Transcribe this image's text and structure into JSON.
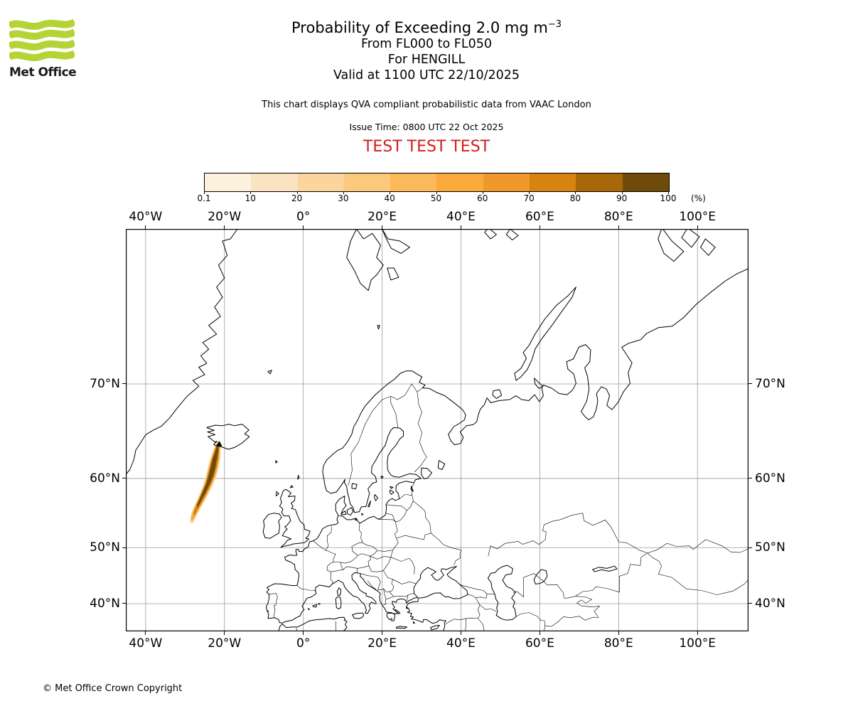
{
  "brand": {
    "name": "Met Office",
    "logo_green": "#b5d334",
    "logo_text_color": "#1b1b1b"
  },
  "header": {
    "title_main": "Probability of Exceeding 2.0 mg m",
    "title_sup": "−3",
    "subtitle1": "From FL000 to FL050",
    "subtitle2": "For HENGILL",
    "subtitle3": "Valid at 1100 UTC 22/10/2025",
    "note": "This chart displays QVA compliant probabilistic data from VAAC London",
    "issue_time": "Issue Time: 0800 UTC 22 Oct 2025",
    "test_banner": "TEST TEST TEST",
    "test_color": "#d21c1c"
  },
  "colorbar": {
    "tick_labels": [
      "0.1",
      "10",
      "20",
      "30",
      "40",
      "50",
      "60",
      "70",
      "80",
      "90",
      "100"
    ],
    "unit": "(%)",
    "colors": [
      "#FDF1DD",
      "#FAE3C1",
      "#FBD59E",
      "#FCC87C",
      "#FBB959",
      "#F9AA3B",
      "#F0982B",
      "#D8830F",
      "#A86708",
      "#6E4A0B"
    ]
  },
  "map": {
    "lon_ticks": [
      {
        "label": "40°W",
        "lon": -40
      },
      {
        "label": "20°W",
        "lon": -20
      },
      {
        "label": "0°",
        "lon": 0
      },
      {
        "label": "20°E",
        "lon": 20
      },
      {
        "label": "40°E",
        "lon": 40
      },
      {
        "label": "60°E",
        "lon": 60
      },
      {
        "label": "80°E",
        "lon": 80
      },
      {
        "label": "100°E",
        "lon": 100
      }
    ],
    "lat_ticks": [
      {
        "label": "70°N",
        "lat": 70
      },
      {
        "label": "60°N",
        "lat": 60
      },
      {
        "label": "50°N",
        "lat": 50
      },
      {
        "label": "40°N",
        "lat": 40
      }
    ],
    "gridline_color": "#9a9a9a",
    "coast_color": "#000000"
  },
  "footer": {
    "copyright": "© Met Office Crown Copyright"
  },
  "chart_data": {
    "type": "geo_probability_contours",
    "title": "Probability of Exceeding 2.0 mg m⁻³",
    "flight_levels": "FL000 to FL050",
    "volcano": {
      "name": "HENGILL",
      "lon": -21.3,
      "lat": 64.08,
      "marker": "triangle"
    },
    "valid_at": "1100 UTC 22/10/2025",
    "issue_time": "0800 UTC 22 Oct 2025",
    "source": "VAAC London",
    "probability_levels_percent": [
      0.1,
      10,
      20,
      30,
      40,
      50,
      60,
      70,
      80,
      90,
      100
    ],
    "projection": "Mercator",
    "map_extent": {
      "lon_min": -45.0,
      "lon_max": 113.3,
      "lat_min": 34.4,
      "lat_max": 79.9
    },
    "lon_gridlines": [
      -40,
      -20,
      0,
      20,
      40,
      60,
      80,
      100
    ],
    "lat_gridlines": [
      40,
      50,
      60,
      70
    ],
    "plume_contours": [
      {
        "level_percent": 0.1,
        "color": "#FAE0B8",
        "polygon_lonlat": [
          [
            -21.1,
            64.35
          ],
          [
            -20.9,
            63.4
          ],
          [
            -21.0,
            62.4
          ],
          [
            -21.4,
            61.4
          ],
          [
            -22.0,
            60.3
          ],
          [
            -22.9,
            59.2
          ],
          [
            -24.0,
            58.0
          ],
          [
            -25.2,
            56.8
          ],
          [
            -26.4,
            55.6
          ],
          [
            -27.4,
            54.5
          ],
          [
            -28.1,
            53.7
          ],
          [
            -28.8,
            53.9
          ],
          [
            -28.7,
            54.8
          ],
          [
            -28.1,
            55.8
          ],
          [
            -27.2,
            56.9
          ],
          [
            -26.3,
            58.0
          ],
          [
            -25.5,
            59.0
          ],
          [
            -24.9,
            60.0
          ],
          [
            -24.4,
            61.0
          ],
          [
            -23.9,
            62.0
          ],
          [
            -23.2,
            63.0
          ],
          [
            -22.4,
            63.9
          ],
          [
            -21.7,
            64.4
          ]
        ]
      },
      {
        "level_percent": 30,
        "color": "#F7A93F",
        "polygon_lonlat": [
          [
            -21.25,
            64.3
          ],
          [
            -21.15,
            63.4
          ],
          [
            -21.3,
            62.4
          ],
          [
            -21.7,
            61.4
          ],
          [
            -22.3,
            60.3
          ],
          [
            -23.2,
            59.2
          ],
          [
            -24.3,
            58.0
          ],
          [
            -25.5,
            56.8
          ],
          [
            -26.7,
            55.6
          ],
          [
            -27.6,
            54.6
          ],
          [
            -28.2,
            54.0
          ],
          [
            -28.5,
            54.3
          ],
          [
            -28.3,
            55.1
          ],
          [
            -27.7,
            55.95
          ],
          [
            -26.9,
            57.0
          ],
          [
            -26.0,
            58.1
          ],
          [
            -25.2,
            59.1
          ],
          [
            -24.6,
            60.1
          ],
          [
            -24.1,
            61.1
          ],
          [
            -23.6,
            62.1
          ],
          [
            -22.9,
            63.1
          ],
          [
            -22.2,
            63.95
          ],
          [
            -21.7,
            64.35
          ]
        ]
      },
      {
        "level_percent": 60,
        "color": "#D28210",
        "polygon_lonlat": [
          [
            -21.35,
            64.25
          ],
          [
            -21.35,
            63.4
          ],
          [
            -21.6,
            62.4
          ],
          [
            -22.0,
            61.4
          ],
          [
            -22.6,
            60.3
          ],
          [
            -23.5,
            59.2
          ],
          [
            -24.6,
            58.0
          ],
          [
            -25.8,
            56.8
          ],
          [
            -26.9,
            55.7
          ],
          [
            -27.6,
            54.95
          ],
          [
            -27.9,
            55.25
          ],
          [
            -27.4,
            56.1
          ],
          [
            -26.6,
            57.1
          ],
          [
            -25.7,
            58.2
          ],
          [
            -24.9,
            59.2
          ],
          [
            -24.3,
            60.2
          ],
          [
            -23.8,
            61.2
          ],
          [
            -23.3,
            62.2
          ],
          [
            -22.6,
            63.2
          ],
          [
            -22.0,
            64.0
          ],
          [
            -21.65,
            64.3
          ]
        ]
      },
      {
        "level_percent": 90,
        "color": "#6F4A0B",
        "polygon_lonlat": [
          [
            -21.45,
            64.2
          ],
          [
            -21.55,
            63.4
          ],
          [
            -21.9,
            62.4
          ],
          [
            -22.3,
            61.4
          ],
          [
            -22.9,
            60.3
          ],
          [
            -23.8,
            59.2
          ],
          [
            -24.9,
            58.05
          ],
          [
            -26.0,
            56.95
          ],
          [
            -26.8,
            56.15
          ],
          [
            -27.0,
            56.45
          ],
          [
            -26.3,
            57.3
          ],
          [
            -25.4,
            58.4
          ],
          [
            -24.6,
            59.4
          ],
          [
            -24.0,
            60.4
          ],
          [
            -23.5,
            61.4
          ],
          [
            -23.0,
            62.4
          ],
          [
            -22.3,
            63.3
          ],
          [
            -21.9,
            64.05
          ]
        ]
      }
    ]
  }
}
